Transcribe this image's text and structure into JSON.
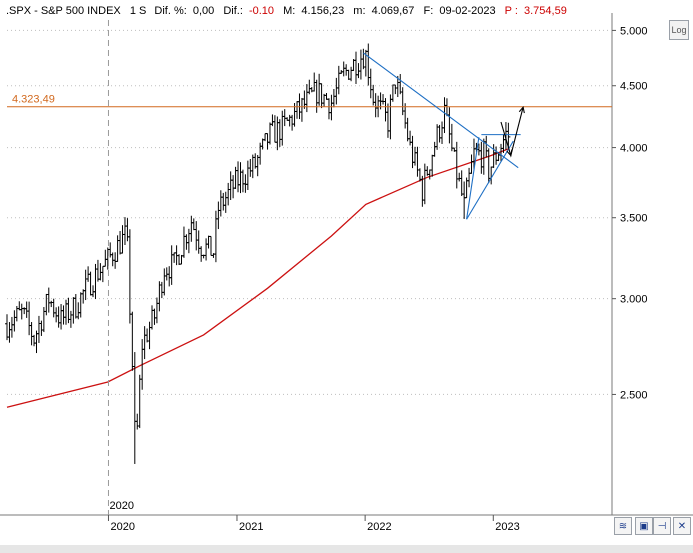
{
  "header": {
    "symbol": ".SPX - S&P 500 INDEX",
    "period": "1 S",
    "dif_pct_label": "Dif. %:",
    "dif_pct_value": "0,00",
    "dif_label": "Dif.:",
    "dif_value": "-0.10",
    "max_label": "M:",
    "max_value": "4.156,23",
    "min_label": "m:",
    "min_value": "4.069,67",
    "date_label": "F:",
    "date_value": "09-02-2023",
    "p_label": "P :",
    "p_value": "3.754,59"
  },
  "controls": {
    "log_label": "Log"
  },
  "colors": {
    "price_bars": "#000000",
    "moving_average": "#cc1111",
    "trendlines": "#1e6fc4",
    "level_line": "#d2691e",
    "level_label": "#d2691e",
    "grid_dash": "#bfbfbf",
    "projection": "#000000"
  },
  "chart_data": {
    "type": "ohlc",
    "scale": "log",
    "ylim": [
      2100,
      5100
    ],
    "ytick_labels": [
      "5.000",
      "4.500",
      "4.000",
      "3.500",
      "3.000",
      "2.500"
    ],
    "ytick_values": [
      5000,
      4500,
      4000,
      3500,
      3000,
      2500
    ],
    "xtick_labels": [
      "2020",
      "2021",
      "2022",
      "2023"
    ],
    "x_start": "2019-03-18",
    "x_end": "2023-07-10",
    "year_starts": [
      "2020-01-01",
      "2021-01-01",
      "2022-01-01",
      "2023-01-01"
    ],
    "annotation_label": "2020",
    "horizontal_level": {
      "value": 4323.49,
      "label": "4.323,49"
    },
    "close_series": [
      [
        "2019-03-18",
        2860
      ],
      [
        "2019-05-01",
        2920
      ],
      [
        "2019-06-03",
        2780
      ],
      [
        "2019-07-15",
        3000
      ],
      [
        "2019-08-19",
        2880
      ],
      [
        "2019-09-30",
        2960
      ],
      [
        "2019-11-04",
        3080
      ],
      [
        "2019-12-30",
        3230
      ],
      [
        "2020-02-17",
        3380
      ],
      [
        "2020-02-24",
        3300
      ],
      [
        "2020-03-02",
        2950
      ],
      [
        "2020-03-09",
        2650
      ],
      [
        "2020-03-16",
        2330
      ],
      [
        "2020-03-23",
        2340
      ],
      [
        "2020-04-06",
        2750
      ],
      [
        "2020-05-11",
        2900
      ],
      [
        "2020-06-08",
        3180
      ],
      [
        "2020-07-06",
        3200
      ],
      [
        "2020-08-24",
        3480
      ],
      [
        "2020-09-21",
        3320
      ],
      [
        "2020-10-26",
        3280
      ],
      [
        "2020-11-09",
        3560
      ],
      [
        "2020-12-28",
        3740
      ],
      [
        "2021-02-22",
        3870
      ],
      [
        "2021-04-05",
        4100
      ],
      [
        "2021-05-10",
        4150
      ],
      [
        "2021-06-28",
        4300
      ],
      [
        "2021-08-16",
        4450
      ],
      [
        "2021-09-27",
        4360
      ],
      [
        "2021-11-01",
        4600
      ],
      [
        "2021-12-27",
        4780
      ],
      [
        "2022-01-03",
        4770
      ],
      [
        "2022-01-24",
        4400
      ],
      [
        "2022-03-07",
        4200
      ],
      [
        "2022-03-28",
        4550
      ],
      [
        "2022-05-09",
        4000
      ],
      [
        "2022-06-13",
        3690
      ],
      [
        "2022-07-04",
        3900
      ],
      [
        "2022-08-15",
        4280
      ],
      [
        "2022-09-12",
        3880
      ],
      [
        "2022-10-10",
        3580
      ],
      [
        "2022-11-07",
        3950
      ],
      [
        "2022-12-05",
        3950
      ],
      [
        "2022-12-19",
        3830
      ],
      [
        "2023-01-16",
        3980
      ],
      [
        "2023-02-06",
        4100
      ],
      [
        "2023-02-13",
        4090
      ]
    ],
    "ohlc_sample": [
      {
        "date": "2020-03-16",
        "high": 2710,
        "low": 2190
      },
      {
        "date": "2022-01-03",
        "high": 4818,
        "low": 4580
      },
      {
        "date": "2022-10-10",
        "high": 3750,
        "low": 3492
      }
    ],
    "moving_average": [
      [
        "2019-03-18",
        2440
      ],
      [
        "2019-12-30",
        2560
      ],
      [
        "2020-03-30",
        2640
      ],
      [
        "2020-09-28",
        2800
      ],
      [
        "2021-03-29",
        3060
      ],
      [
        "2021-09-27",
        3380
      ],
      [
        "2022-01-03",
        3590
      ],
      [
        "2022-06-27",
        3780
      ],
      [
        "2022-12-26",
        3940
      ],
      [
        "2023-02-13",
        3990
      ]
    ],
    "trendlines": [
      {
        "name": "resistance",
        "from": [
          "2021-12-27",
          4790
        ],
        "to": [
          "2023-03-13",
          3850
        ]
      },
      {
        "name": "support",
        "from": [
          "2022-10-17",
          3490
        ],
        "to": [
          "2023-02-27",
          4050
        ]
      },
      {
        "name": "range-top",
        "from": [
          "2022-11-28",
          4100
        ],
        "to": [
          "2023-03-20",
          4100
        ]
      },
      {
        "name": "flag-left",
        "from": [
          "2022-10-17",
          3490
        ],
        "to": [
          "2022-11-21",
          4080
        ]
      }
    ],
    "projection": [
      [
        "2023-01-23",
        4200
      ],
      [
        "2023-02-20",
        3940
      ],
      [
        "2023-03-27",
        4320
      ]
    ]
  }
}
